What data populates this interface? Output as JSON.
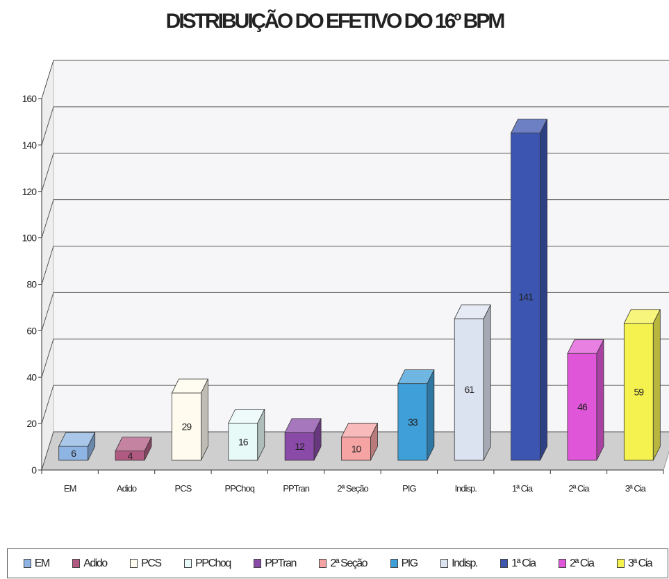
{
  "chart_data": {
    "type": "bar",
    "title": "DISTRIBUIÇÃO DO EFETIVO DO 16º BPM",
    "xlabel": "",
    "ylabel": "",
    "ylim": [
      0,
      160
    ],
    "yticks": [
      0,
      20,
      40,
      60,
      80,
      100,
      120,
      140,
      160
    ],
    "grid": true,
    "legend": "bottom",
    "categories": [
      "EM",
      "Adido",
      "PCS",
      "PPChoq",
      "PPTran",
      "2ª Seção",
      "PIG",
      "Indisp.",
      "1ª Cia",
      "2ª Cia",
      "3ª Cia"
    ],
    "values": [
      6,
      4,
      29,
      16,
      12,
      10,
      33,
      61,
      141,
      46,
      59
    ],
    "colors": [
      "#8eb4e3",
      "#b05a82",
      "#fffbee",
      "#e8faf8",
      "#8a4aa8",
      "#f5a3a3",
      "#3f9fd8",
      "#dce3f0",
      "#3c55b0",
      "#e056d8",
      "#f5f250"
    ],
    "tick_labels": [
      "EM",
      "Adido",
      "PCS",
      "PPChoq",
      "PPTran",
      "2ª Seção",
      "PIG",
      "Indisp.",
      "1ª Cia",
      "2ª Cia",
      "3ª Cia"
    ],
    "legend_labels": [
      "EM",
      "Adido",
      "PCS",
      "PPChoq",
      "PPTran",
      "2ª Seção",
      "PIG",
      "Indisp.",
      "1ª Cia",
      "2ª Cia",
      "3ª Cia"
    ]
  }
}
